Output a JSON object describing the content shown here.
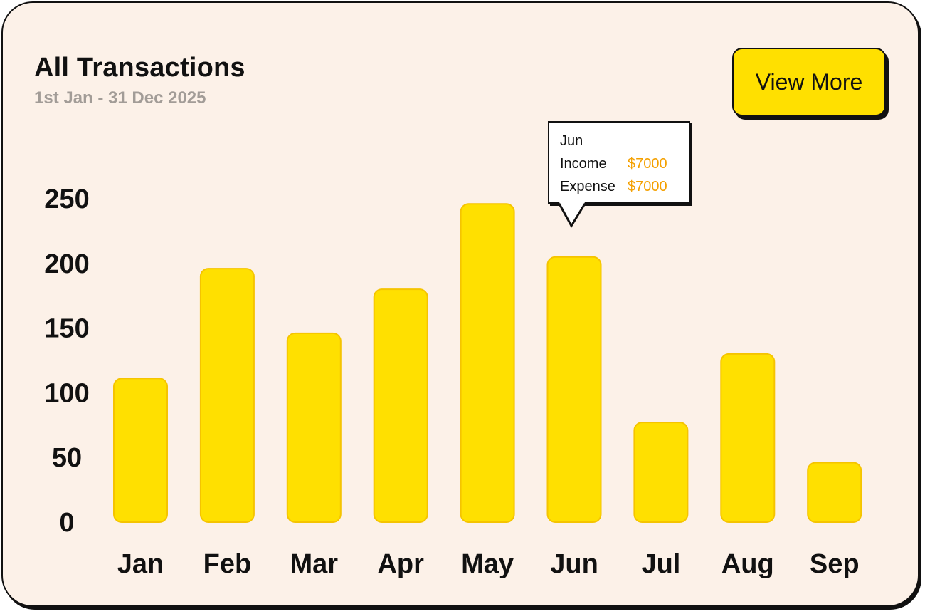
{
  "card": {
    "title": "All Transactions",
    "subtitle": "1st Jan - 31 Dec 2025",
    "view_more_label": "View More"
  },
  "tooltip": {
    "month": "Jun",
    "income_label": "Income",
    "income_value": "$7000",
    "expense_label": "Expense",
    "expense_value": "$7000"
  },
  "colors": {
    "card_bg": "#fcf1e8",
    "bar_fill": "#ffe000",
    "bar_stroke": "#f5c400",
    "tooltip_value": "#f4a000",
    "subtitle": "#a29c97"
  },
  "chart_data": {
    "type": "bar",
    "categories": [
      "Jan",
      "Feb",
      "Mar",
      "Apr",
      "May",
      "Jun",
      "Jul",
      "Aug",
      "Sep"
    ],
    "values": [
      111,
      196,
      146,
      180,
      246,
      205,
      77,
      130,
      46
    ],
    "y_ticks": [
      0,
      50,
      100,
      150,
      200,
      250
    ],
    "ylim": [
      0,
      250
    ],
    "grid": false,
    "legend": "none"
  }
}
